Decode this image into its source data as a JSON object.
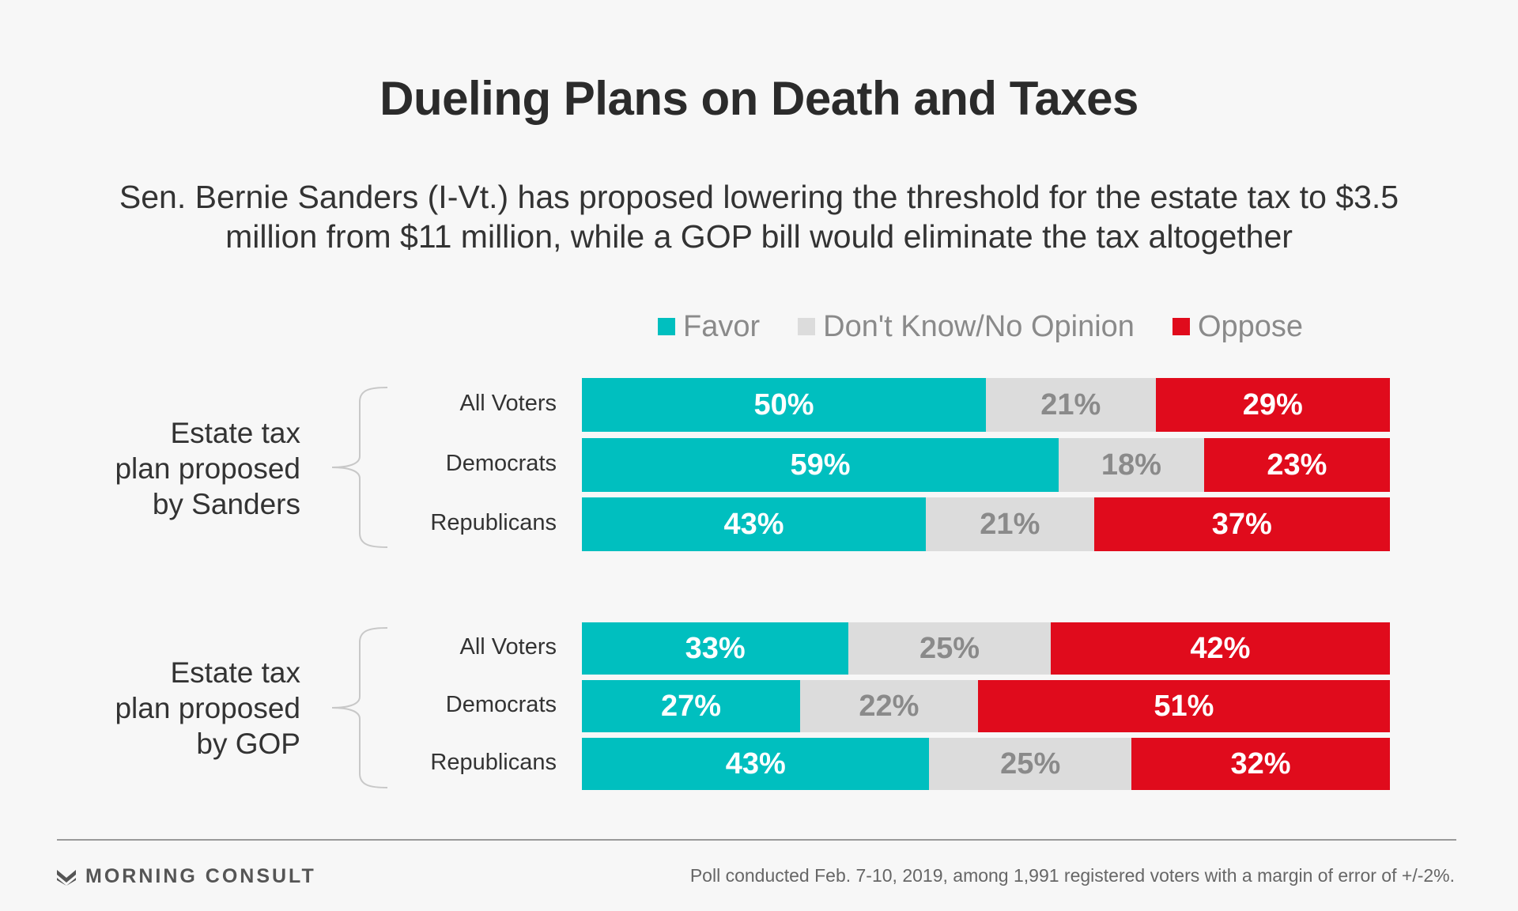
{
  "title": "Dueling Plans on Death and Taxes",
  "subtitle": "Sen. Bernie Sanders (I-Vt.) has proposed lowering the threshold for the estate tax to $3.5 million from $11 million, while a GOP bill would eliminate the tax altogether",
  "colors": {
    "favor": "#00bfbf",
    "dont_know": "#dcdcdc",
    "oppose": "#e00b1c",
    "text_on_light": "#8a8a8a",
    "text_on_dark": "#ffffff"
  },
  "chart_data": {
    "type": "bar",
    "orientation": "horizontal",
    "stacked": true,
    "percent": true,
    "legend_placement": "top",
    "series": [
      {
        "name": "Favor"
      },
      {
        "name": "Don't Know/No Opinion"
      },
      {
        "name": "Oppose"
      }
    ],
    "groups": [
      {
        "label": "Estate tax\nplan proposed\nby Sanders",
        "rows": [
          {
            "category": "All Voters",
            "values": [
              50,
              21,
              29
            ],
            "labels": [
              "50%",
              "21%",
              "29%"
            ]
          },
          {
            "category": "Democrats",
            "values": [
              59,
              18,
              23
            ],
            "labels": [
              "59%",
              "18%",
              "23%"
            ]
          },
          {
            "category": "Republicans",
            "values": [
              43,
              21,
              37
            ],
            "labels": [
              "43%",
              "21%",
              "37%"
            ]
          }
        ]
      },
      {
        "label": "Estate tax\nplan proposed\nby GOP",
        "rows": [
          {
            "category": "All Voters",
            "values": [
              33,
              25,
              42
            ],
            "labels": [
              "33%",
              "25%",
              "42%"
            ]
          },
          {
            "category": "Democrats",
            "values": [
              27,
              22,
              51
            ],
            "labels": [
              "27%",
              "22%",
              "51%"
            ]
          },
          {
            "category": "Republicans",
            "values": [
              43,
              25,
              32
            ],
            "labels": [
              "43%",
              "25%",
              "32%"
            ]
          }
        ]
      }
    ]
  },
  "footer": {
    "brand": "MORNING CONSULT",
    "source": "Poll conducted Feb. 7-10, 2019, among 1,991 registered voters with a margin of error of +/-2%."
  }
}
